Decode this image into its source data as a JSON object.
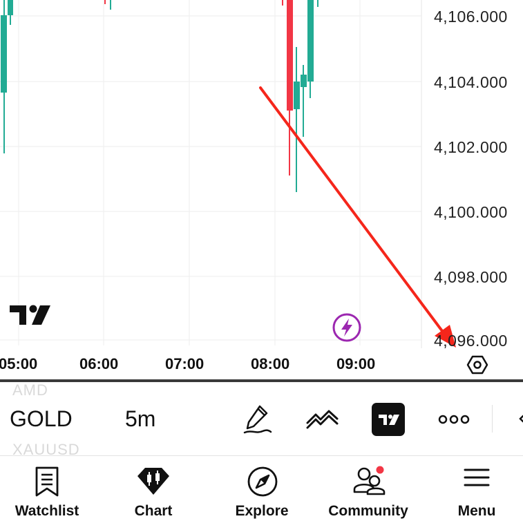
{
  "chart": {
    "price_axis": [
      "4,106.000",
      "4,104.000",
      "4,102.000",
      "4,100.000",
      "4,098.000",
      "4,096.000"
    ],
    "time_axis": [
      "05:00",
      "06:00",
      "07:00",
      "08:00",
      "09:00"
    ],
    "colors": {
      "up": "#22ab94",
      "down": "#f23645",
      "annotation": "#f5261b",
      "flash": "#9c27b0"
    }
  },
  "symbol_bar": {
    "prev_symbol": "AMD",
    "symbol": "GOLD",
    "next_symbol": "XAUUSD",
    "interval": "5m"
  },
  "toolbar": {
    "icons": [
      "pencil-icon",
      "indicators-icon",
      "tradingview-icon",
      "more-icon"
    ]
  },
  "nav": {
    "watchlist": "Watchlist",
    "chart": "Chart",
    "explore": "Explore",
    "community": "Community",
    "menu": "Menu"
  }
}
